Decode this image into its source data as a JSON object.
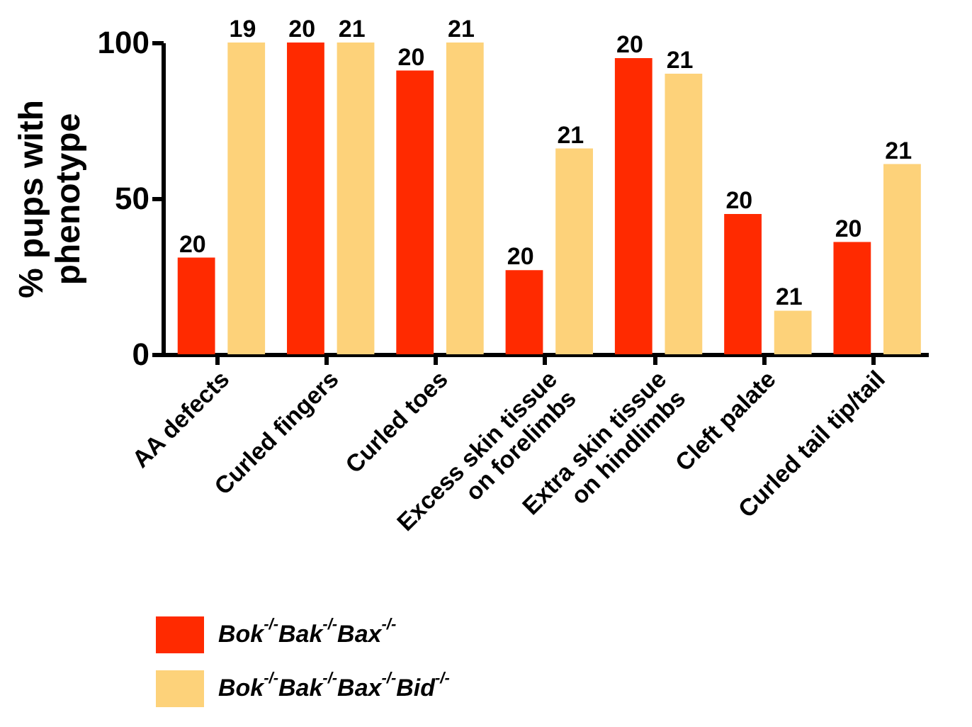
{
  "chart_data": {
    "type": "bar",
    "ylabel": "% pups with\nphenotype",
    "categories": [
      "AA defects",
      "Curled fingers",
      "Curled toes",
      "Excess skin tissue\non forelimbs",
      "Extra skin tissue\non hindlimbs",
      "Cleft palate",
      "Curled tail tip/tail"
    ],
    "series": [
      {
        "name": "Bok$^{-/-}$Bak$^{-/-}$Bax$^{-/-}$",
        "color": "#ff2a00",
        "values": [
          31,
          100,
          91,
          27,
          95,
          45,
          36
        ]
      },
      {
        "name": "Bok$^{-/-}$Bak$^{-/-}$Bax$^{-/-}$Bid$^{-/-}$",
        "color": "#fdd27a",
        "values": [
          100,
          100,
          100,
          66,
          90,
          14,
          61
        ]
      }
    ],
    "annotations": [
      "20",
      "20",
      "20",
      "20",
      "20",
      "20",
      "20",
      "19",
      "21",
      "21",
      "21",
      "21",
      "21",
      "21"
    ],
    "ylim": [
      0,
      100
    ],
    "yticks": [
      0,
      50,
      100
    ],
    "grid": false,
    "legend": "bottom left"
  }
}
